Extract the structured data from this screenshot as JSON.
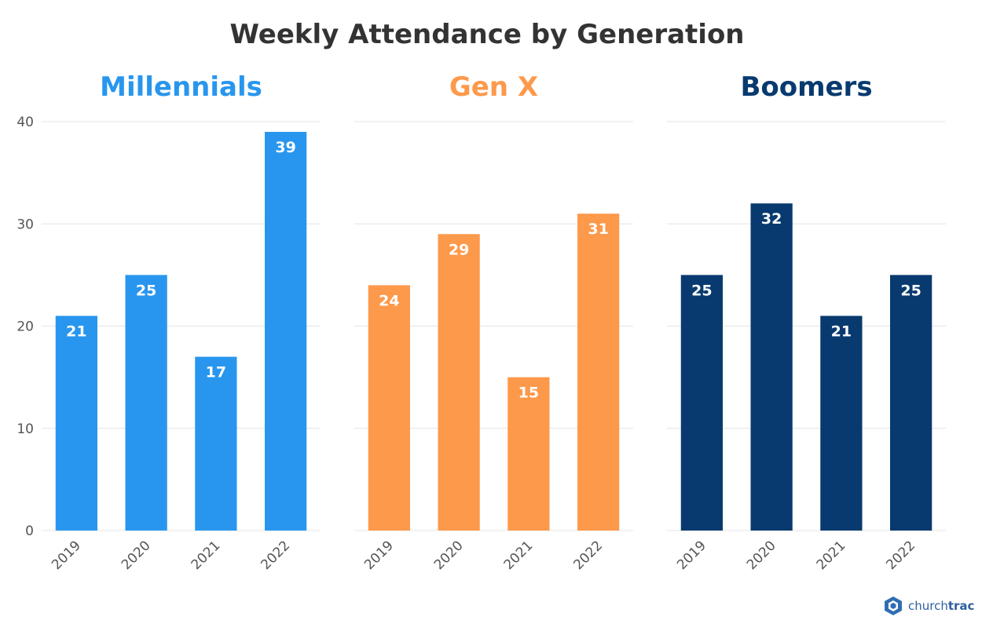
{
  "title": "Weekly Attendance by Generation",
  "brand": {
    "name_prefix": "church",
    "name_suffix": "trac",
    "icon": "churchtrac-logo-icon"
  },
  "colors": {
    "title": "#333333",
    "grid": "#e4e4e4",
    "axis_text": "#555555",
    "label_text": "#ffffff"
  },
  "chart_data": [
    {
      "type": "bar",
      "title": "Millennials",
      "color": "#2896ee",
      "categories": [
        "2019",
        "2020",
        "2021",
        "2022"
      ],
      "values": [
        21,
        25,
        17,
        39
      ],
      "ylim": [
        0,
        40
      ],
      "yticks": [
        0,
        10,
        20,
        30,
        40
      ],
      "ylabel": "",
      "xlabel": "",
      "grid": true
    },
    {
      "type": "bar",
      "title": "Gen X",
      "color": "#fd994b",
      "categories": [
        "2019",
        "2020",
        "2021",
        "2022"
      ],
      "values": [
        24,
        29,
        15,
        31
      ],
      "ylim": [
        0,
        40
      ],
      "yticks": [
        0,
        10,
        20,
        30,
        40
      ],
      "ylabel": "",
      "xlabel": "",
      "grid": true
    },
    {
      "type": "bar",
      "title": "Boomers",
      "color": "#083a6f",
      "categories": [
        "2019",
        "2020",
        "2021",
        "2022"
      ],
      "values": [
        25,
        32,
        21,
        25
      ],
      "ylim": [
        0,
        40
      ],
      "yticks": [
        0,
        10,
        20,
        30,
        40
      ],
      "ylabel": "",
      "xlabel": "",
      "grid": true
    }
  ]
}
